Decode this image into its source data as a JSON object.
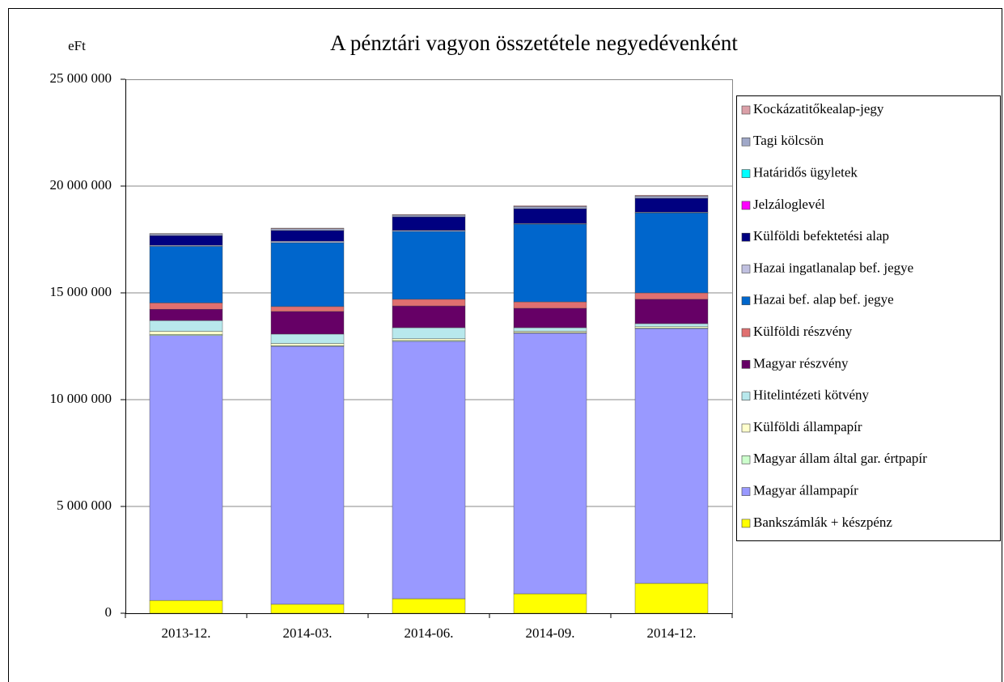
{
  "chart_data": {
    "type": "stacked_bar",
    "title": "A pénztári vagyon összetétele negyedévenként",
    "y_label": "eFt",
    "categories": [
      "2013-12.",
      "2014-03.",
      "2014-06.",
      "2014-09.",
      "2014-12."
    ],
    "ylim": [
      0,
      25000000
    ],
    "yticks": [
      0,
      {
        "value": 5000000,
        "label": "5 000 000"
      },
      {
        "value": 10000000,
        "label": "10 000 000"
      },
      {
        "value": 15000000,
        "label": "15 000 000"
      },
      {
        "value": 20000000,
        "label": "20 000 000"
      },
      {
        "value": 25000000,
        "label": "25 000 000"
      }
    ],
    "grid": true,
    "legend": "right",
    "series": [
      {
        "name": "Bankszámlák + készpénz",
        "color": "#ffff00",
        "values": [
          600000,
          420000,
          680000,
          910000,
          1400000
        ]
      },
      {
        "name": "Magyar állampapír",
        "color": "#9999ff",
        "values": [
          12400000,
          12080000,
          12050000,
          12200000,
          11930000
        ]
      },
      {
        "name": "Magyar állam által gar. értpapír",
        "color": "#ccffcc",
        "values": [
          50000,
          30000,
          40000,
          30000,
          30000
        ]
      },
      {
        "name": "Külföldi állampapír",
        "color": "#ffffcc",
        "values": [
          150000,
          100000,
          80000,
          60000,
          60000
        ]
      },
      {
        "name": "Hitelintézeti kötvény",
        "color": "#b8e8ec",
        "values": [
          500000,
          440000,
          520000,
          170000,
          140000
        ]
      },
      {
        "name": "Magyar részvény",
        "color": "#660066",
        "values": [
          530000,
          1060000,
          1020000,
          910000,
          1140000
        ]
      },
      {
        "name": "Külföldi részvény",
        "color": "#e07070",
        "values": [
          300000,
          230000,
          310000,
          300000,
          300000
        ]
      },
      {
        "name": "Hazai bef. alap bef. jegye",
        "color": "#0066cc",
        "values": [
          2650000,
          2990000,
          3180000,
          3640000,
          3750000
        ]
      },
      {
        "name": "Hazai ingatlanalap bef. jegye",
        "color": "#c0c0e0",
        "values": [
          50000,
          70000,
          50000,
          30000,
          30000
        ]
      },
      {
        "name": "Külföldi befektetési alap",
        "color": "#000080",
        "values": [
          450000,
          500000,
          630000,
          690000,
          650000
        ]
      },
      {
        "name": "Jelzáloglevél",
        "color": "#ff00ff",
        "values": [
          0,
          0,
          0,
          0,
          0
        ]
      },
      {
        "name": "Határidős ügyletek",
        "color": "#00ffff",
        "values": [
          0,
          0,
          0,
          0,
          0
        ]
      },
      {
        "name": "Tagi kölcsön",
        "color": "#a0a8c8",
        "values": [
          80000,
          80000,
          80000,
          100000,
          100000
        ]
      },
      {
        "name": "Kockázatitőkealap-jegy",
        "color": "#dba0a8",
        "values": [
          20000,
          30000,
          30000,
          40000,
          40000
        ]
      }
    ]
  }
}
